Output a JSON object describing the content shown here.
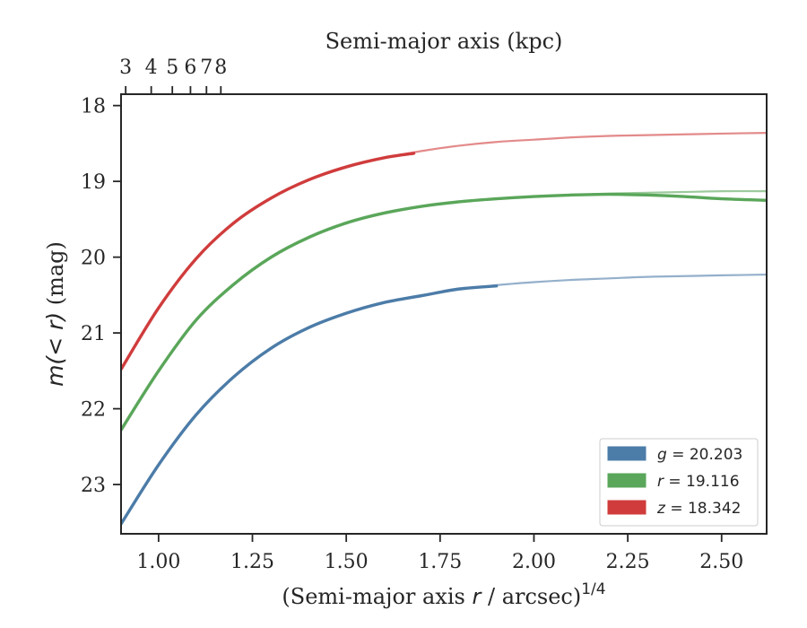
{
  "chart_data": {
    "type": "line",
    "xlabel": "(Semi-major axis r / arcsec)^1/4",
    "xlabel_prefix": "(Semi-major axis ",
    "xlabel_var": "r",
    "xlabel_mid": " / arcsec)",
    "xlabel_sup": "1/4",
    "ylabel": "m(<r) (mag)",
    "ylabel_var": "m",
    "ylabel_inner": "(< r)",
    "ylabel_suffix": " (mag)",
    "top_xlabel": "Semi-major axis (kpc)",
    "xlim": [
      0.9,
      2.62
    ],
    "ylim": [
      23.65,
      17.85
    ],
    "y_inverted": true,
    "xticks": [
      1.0,
      1.25,
      1.5,
      1.75,
      2.0,
      2.25,
      2.5
    ],
    "xtick_labels": [
      "1.00",
      "1.25",
      "1.50",
      "1.75",
      "2.00",
      "2.25",
      "2.50"
    ],
    "yticks": [
      18,
      19,
      20,
      21,
      22,
      23
    ],
    "ytick_labels": [
      "18",
      "19",
      "20",
      "21",
      "22",
      "23"
    ],
    "top_xticks": [
      3,
      4,
      5,
      6,
      7,
      8
    ],
    "top_xtick_labels": [
      "3",
      "4",
      "5",
      "6",
      "7",
      "8"
    ],
    "top_axis_note": "top axis positions follow x = (kpc / 4.33)^(1/4)",
    "grid": false,
    "legend_position": "lower-right",
    "series": [
      {
        "name": "g = 20.203",
        "legend_var": "g",
        "legend_value": "= 20.203",
        "color": "#4c7ca8",
        "model_x": [
          0.9,
          1.0,
          1.1,
          1.2,
          1.3,
          1.4,
          1.5,
          1.6,
          1.7,
          1.8,
          1.9,
          2.0,
          2.1,
          2.2,
          2.3,
          2.4,
          2.5,
          2.62
        ],
        "model_y": [
          23.52,
          22.74,
          22.08,
          21.58,
          21.2,
          20.93,
          20.74,
          20.6,
          20.5,
          20.43,
          20.37,
          20.33,
          20.3,
          20.28,
          20.26,
          20.25,
          20.24,
          20.23
        ],
        "data_x": [
          0.9,
          1.0,
          1.1,
          1.2,
          1.3,
          1.4,
          1.5,
          1.6,
          1.7,
          1.8,
          1.9
        ],
        "data_y": [
          23.52,
          22.74,
          22.08,
          21.58,
          21.2,
          20.93,
          20.74,
          20.6,
          20.51,
          20.42,
          20.38
        ]
      },
      {
        "name": "r = 19.116",
        "legend_var": "r",
        "legend_value": "= 19.116",
        "color": "#5aa65a",
        "model_x": [
          0.9,
          1.0,
          1.1,
          1.2,
          1.3,
          1.4,
          1.5,
          1.6,
          1.7,
          1.8,
          1.9,
          2.0,
          2.1,
          2.2,
          2.3,
          2.4,
          2.5,
          2.62
        ],
        "model_y": [
          22.28,
          21.5,
          20.83,
          20.35,
          19.99,
          19.73,
          19.54,
          19.41,
          19.33,
          19.27,
          19.23,
          19.2,
          19.18,
          19.16,
          19.15,
          19.14,
          19.13,
          19.13
        ],
        "data_x": [
          0.9,
          1.0,
          1.1,
          1.2,
          1.3,
          1.4,
          1.5,
          1.6,
          1.7,
          1.8,
          1.9,
          2.0,
          2.1,
          2.2,
          2.3,
          2.4,
          2.5,
          2.62
        ],
        "data_y": [
          22.28,
          21.5,
          20.83,
          20.36,
          20.0,
          19.74,
          19.55,
          19.42,
          19.33,
          19.27,
          19.23,
          19.2,
          19.18,
          19.17,
          19.18,
          19.2,
          19.23,
          19.25
        ]
      },
      {
        "name": "z = 18.342",
        "legend_var": "z",
        "legend_value": "= 18.342",
        "color": "#d03c3c",
        "model_x": [
          0.9,
          1.0,
          1.1,
          1.2,
          1.3,
          1.4,
          1.5,
          1.6,
          1.7,
          1.8,
          1.9,
          2.0,
          2.1,
          2.2,
          2.3,
          2.4,
          2.5,
          2.62
        ],
        "model_y": [
          21.48,
          20.67,
          20.02,
          19.55,
          19.22,
          18.98,
          18.8,
          18.69,
          18.6,
          18.53,
          18.48,
          18.45,
          18.42,
          18.4,
          18.39,
          18.38,
          18.37,
          18.36
        ],
        "data_x": [
          0.9,
          1.0,
          1.1,
          1.2,
          1.3,
          1.4,
          1.5,
          1.6,
          1.68
        ],
        "data_y": [
          21.48,
          20.67,
          20.02,
          19.55,
          19.22,
          18.98,
          18.81,
          18.69,
          18.63
        ]
      }
    ]
  }
}
